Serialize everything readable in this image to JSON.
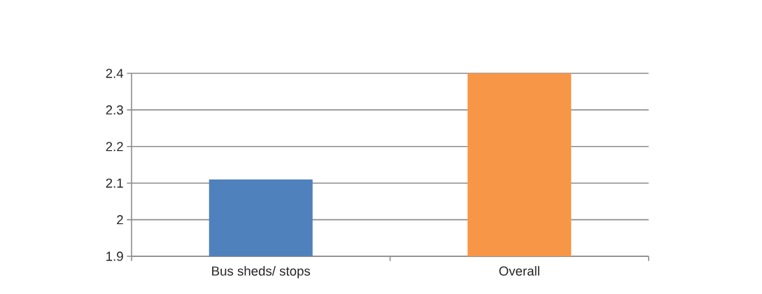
{
  "chart_data": {
    "type": "bar",
    "categories": [
      "Bus sheds/ stops",
      "Overall"
    ],
    "values": [
      2.11,
      2.4
    ],
    "colors": [
      "#4f81bd",
      "#f79646"
    ],
    "ylim": [
      1.9,
      2.4
    ],
    "yticks": [
      1.9,
      2,
      2.1,
      2.2,
      2.3,
      2.4
    ],
    "grid": "y"
  }
}
